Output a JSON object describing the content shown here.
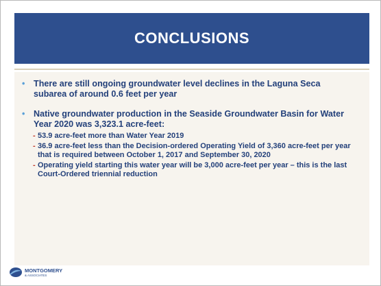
{
  "title": "CONCLUSIONS",
  "bullets": [
    {
      "text": "There are still ongoing groundwater level declines in the Laguna Seca subarea of around 0.6 feet per year",
      "sub": []
    },
    {
      "text": "Native groundwater production in the Seaside Groundwater Basin for Water Year 2020 was 3,323.1 acre-feet:",
      "sub": [
        "53.9 acre-feet more than Water Year 2019",
        "36.9 acre-feet less than the Decision-ordered Operating Yield of 3,360 acre-feet per year that is required between October 1, 2017 and September 30, 2020",
        "Operating yield starting this water year will be 3,000 acre-feet per year – this is the last Court-Ordered triennial reduction"
      ]
    }
  ],
  "logo": {
    "name": "MONTGOMERY",
    "sub": "& ASSOCIATES"
  }
}
